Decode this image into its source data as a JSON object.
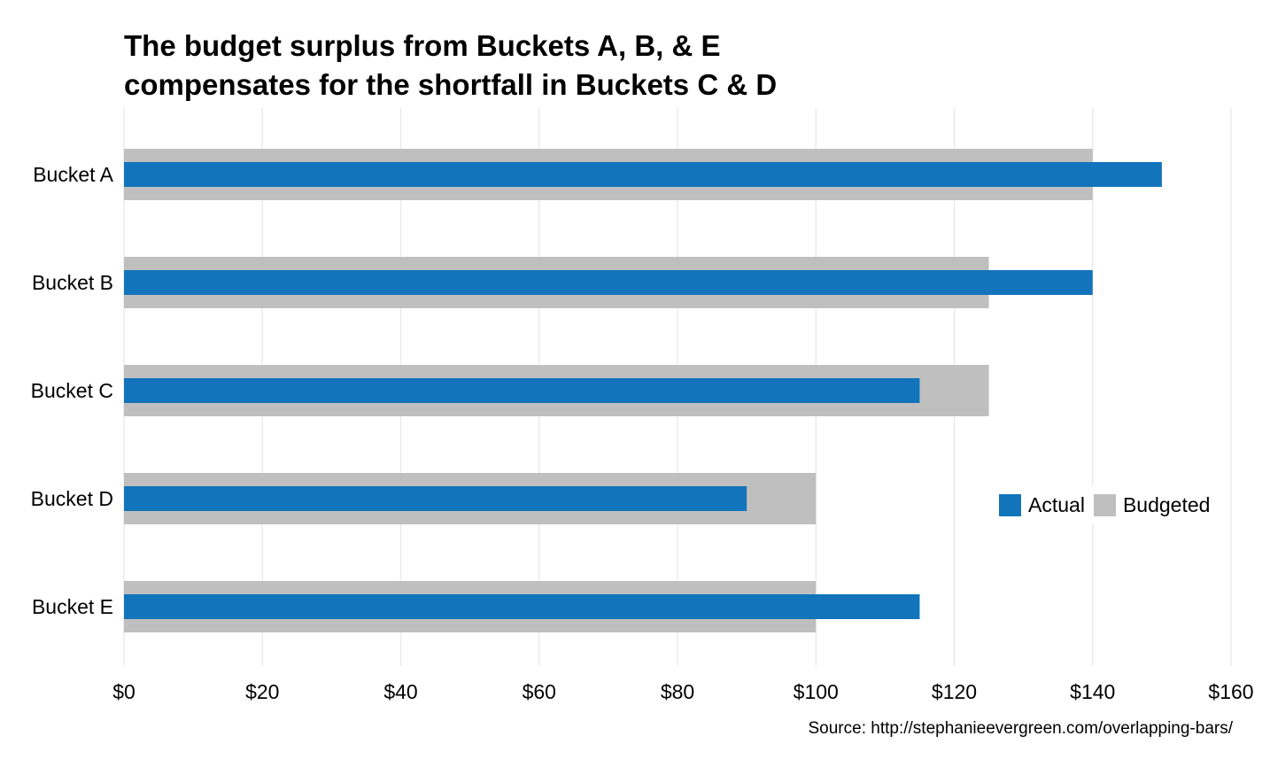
{
  "title_lines": [
    "The budget surplus from Buckets A, B, & E",
    "compensates for the shortfall in Buckets C & D"
  ],
  "source": "Source: http://stephanieevergreen.com/overlapping-bars/",
  "colors": {
    "actual": "#1274bb",
    "budgeted": "#bfbfbf",
    "grid": "#e8e8e8"
  },
  "legend": {
    "position": "right, middle",
    "items": [
      {
        "label": "Actual",
        "color": "#1274bb"
      },
      {
        "label": "Budgeted",
        "color": "#bfbfbf"
      }
    ]
  },
  "chart_data": {
    "type": "bar",
    "orientation": "horizontal",
    "title": "The budget surplus from Buckets A, B, & E compensates for the shortfall in Buckets C & D",
    "categories": [
      "Bucket A",
      "Bucket B",
      "Bucket C",
      "Bucket D",
      "Bucket E"
    ],
    "series": [
      {
        "name": "Budgeted",
        "values": [
          140,
          125,
          125,
          100,
          100
        ]
      },
      {
        "name": "Actual",
        "values": [
          150,
          140,
          115,
          90,
          115
        ]
      }
    ],
    "xlim": [
      0,
      160
    ],
    "xticks": [
      0,
      20,
      40,
      60,
      80,
      100,
      120,
      140,
      160
    ],
    "xtick_labels": [
      "$0",
      "$20",
      "$40",
      "$60",
      "$80",
      "$100",
      "$120",
      "$140",
      "$160"
    ],
    "grid": "vertical major",
    "overlapping_bars": true
  }
}
